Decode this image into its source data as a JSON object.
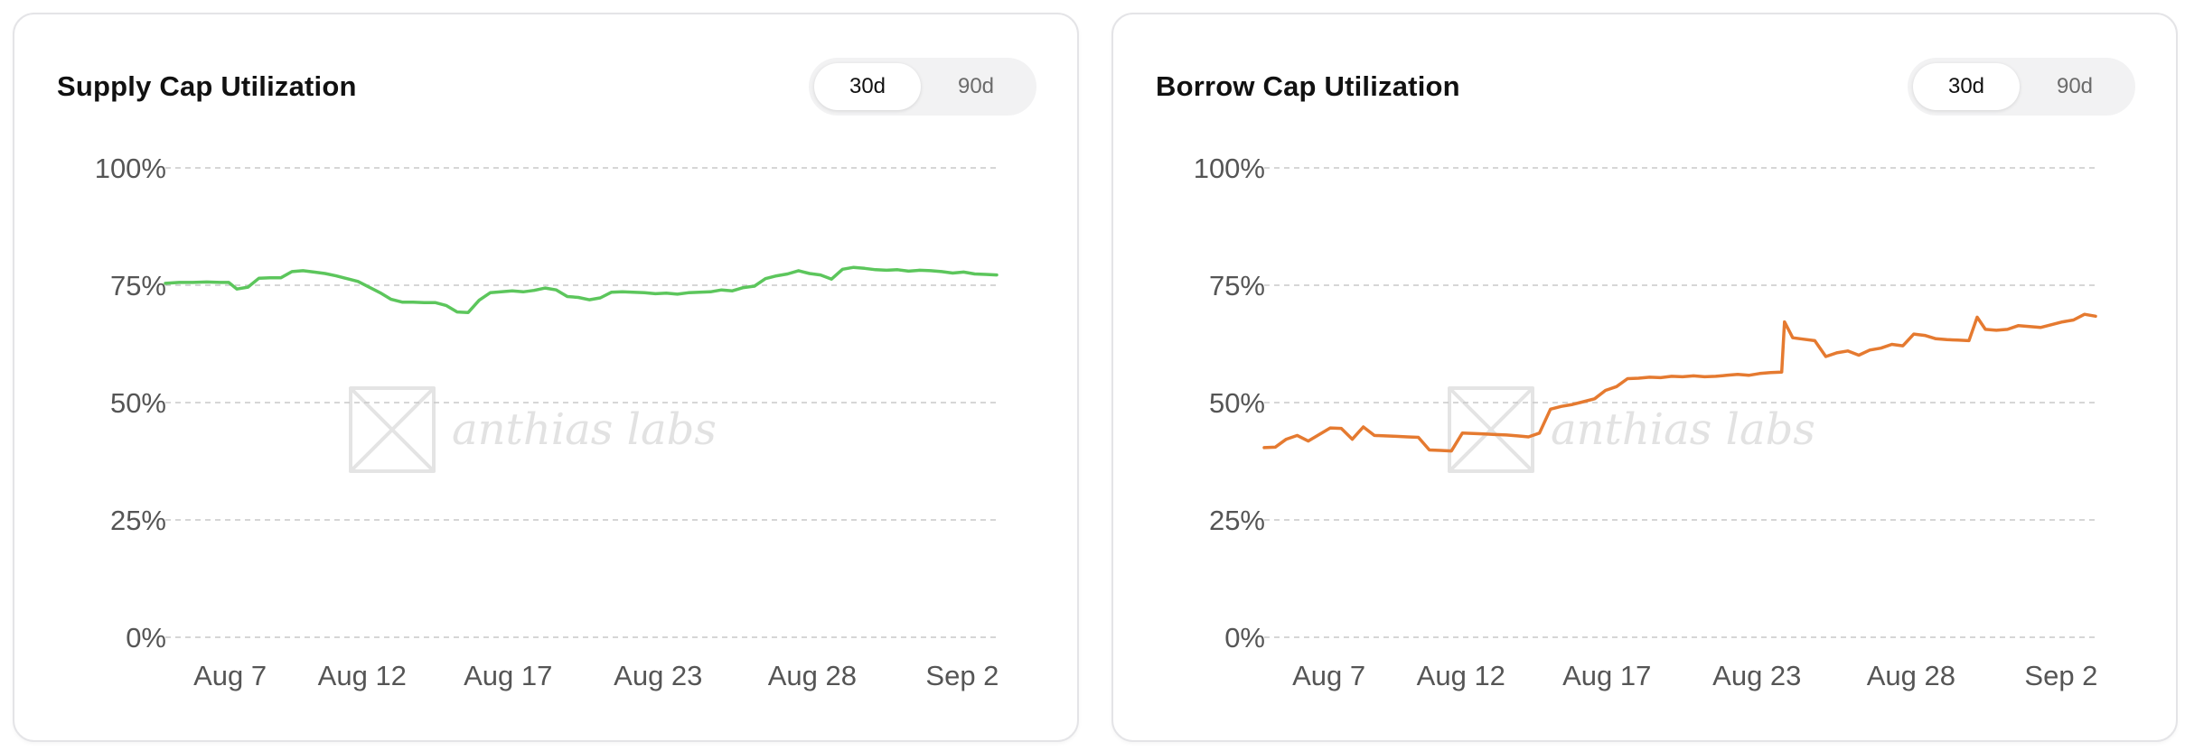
{
  "charts": [
    {
      "id": "supply",
      "title": "Supply Cap Utilization",
      "range_options": [
        {
          "label": "30d",
          "active": true
        },
        {
          "label": "90d",
          "active": false
        }
      ],
      "watermark": "anthias labs",
      "colors": {
        "line": "#5cc65c",
        "grid": "#c8c8c8",
        "text": "#555555"
      }
    },
    {
      "id": "borrow",
      "title": "Borrow Cap Utilization",
      "range_options": [
        {
          "label": "30d",
          "active": true
        },
        {
          "label": "90d",
          "active": false
        }
      ],
      "watermark": "anthias labs",
      "colors": {
        "line": "#e57a30",
        "grid": "#c8c8c8",
        "text": "#555555"
      }
    }
  ],
  "chart_data": [
    {
      "type": "line",
      "title": "Supply Cap Utilization",
      "xlabel": "",
      "ylabel": "",
      "x_ticks": [
        "Aug 7",
        "Aug 12",
        "Aug 17",
        "Aug 23",
        "Aug 28",
        "Sep 2"
      ],
      "y_ticks": [
        "0%",
        "25%",
        "50%",
        "75%",
        "100%"
      ],
      "ylim": [
        0,
        100
      ],
      "xlim": [
        0,
        30.2
      ],
      "grid": true,
      "series": [
        {
          "x": [
            0,
            0.5,
            1,
            1.5,
            2,
            2.3,
            2.6,
            3,
            3.4,
            3.8,
            4.2,
            4.6,
            5,
            5.4,
            5.8,
            6.2,
            6.6,
            7,
            7.4,
            7.8,
            8.2,
            8.6,
            9,
            9.4,
            9.8,
            10.2,
            10.6,
            11,
            11.4,
            11.8,
            12.2,
            12.6,
            13,
            13.4,
            13.8,
            14.2,
            14.6,
            15,
            15.4,
            15.8,
            16.2,
            16.6,
            17,
            17.4,
            17.8,
            18.2,
            18.6,
            19,
            19.4,
            19.8,
            20.2,
            20.6,
            21,
            21.4,
            21.8,
            22.2,
            22.6,
            23,
            23.4,
            23.8,
            24.2,
            24.6,
            25,
            25.4,
            25.8,
            26.2,
            26.6,
            27,
            27.4,
            27.8,
            28.2,
            28.6,
            29,
            29.4,
            29.8,
            30.2
          ],
          "values": [
            75.4,
            75.6,
            75.6,
            75.7,
            75.6,
            75.6,
            74.2,
            74.6,
            76.5,
            76.6,
            76.6,
            77.9,
            78.1,
            77.8,
            77.5,
            77.0,
            76.4,
            75.8,
            74.6,
            73.4,
            72.0,
            71.4,
            71.4,
            71.3,
            71.3,
            70.7,
            69.3,
            69.2,
            71.8,
            73.4,
            73.6,
            73.8,
            73.6,
            73.9,
            74.4,
            74.0,
            72.6,
            72.4,
            71.9,
            72.3,
            73.5,
            73.6,
            73.5,
            73.4,
            73.2,
            73.3,
            73.1,
            73.4,
            73.5,
            73.6,
            74.0,
            73.8,
            74.5,
            74.8,
            76.4,
            77.0,
            77.4,
            78.1,
            77.5,
            77.2,
            76.3,
            78.4,
            78.8,
            78.6,
            78.3,
            78.2,
            78.3,
            78.0,
            78.2,
            78.1,
            77.9,
            77.6,
            77.8,
            77.4,
            77.3,
            77.2
          ]
        }
      ]
    },
    {
      "type": "line",
      "title": "Borrow Cap Utilization",
      "xlabel": "",
      "ylabel": "",
      "x_ticks": [
        "Aug 7",
        "Aug 12",
        "Aug 17",
        "Aug 23",
        "Aug 28",
        "Sep 2"
      ],
      "y_ticks": [
        "0%",
        "25%",
        "50%",
        "75%",
        "100%"
      ],
      "ylim": [
        0,
        100
      ],
      "xlim": [
        0,
        30.2
      ],
      "grid": true,
      "series": [
        {
          "x": [
            0,
            0.4,
            0.8,
            1.2,
            1.6,
            2.0,
            2.4,
            2.8,
            3.2,
            3.6,
            4.0,
            4.4,
            4.8,
            5.2,
            5.6,
            6.0,
            6.4,
            6.8,
            7.2,
            7.6,
            8.0,
            8.4,
            8.8,
            9.2,
            9.6,
            10.0,
            10.4,
            10.8,
            11.2,
            11.6,
            12.0,
            12.4,
            12.8,
            13.2,
            13.6,
            14.0,
            14.4,
            14.8,
            15.2,
            15.6,
            16.0,
            16.4,
            16.8,
            17.2,
            17.6,
            18.0,
            18.4,
            18.8,
            18.9,
            19.2,
            19.6,
            20.0,
            20.4,
            20.8,
            21.2,
            21.6,
            22.0,
            22.4,
            22.8,
            23.2,
            23.6,
            24.0,
            24.4,
            24.8,
            25.2,
            25.6,
            25.9,
            26.2,
            26.6,
            27.0,
            27.4,
            27.8,
            28.2,
            28.6,
            29.0,
            29.4,
            29.8,
            30.2
          ],
          "values": [
            40.4,
            40.5,
            42.2,
            43.0,
            41.8,
            43.2,
            44.6,
            44.5,
            42.2,
            44.8,
            43.0,
            42.9,
            42.8,
            42.7,
            42.6,
            39.9,
            39.8,
            39.7,
            43.5,
            43.4,
            43.3,
            43.2,
            43.1,
            42.9,
            42.7,
            43.5,
            48.6,
            49.2,
            49.6,
            50.2,
            50.8,
            52.6,
            53.4,
            55.1,
            55.2,
            55.4,
            55.3,
            55.6,
            55.5,
            55.7,
            55.5,
            55.6,
            55.8,
            56.0,
            55.8,
            56.2,
            56.4,
            56.5,
            67.2,
            63.8,
            63.5,
            63.2,
            59.8,
            60.6,
            61.0,
            60.1,
            61.2,
            61.6,
            62.4,
            62.1,
            64.6,
            64.3,
            63.6,
            63.4,
            63.3,
            63.2,
            68.2,
            65.6,
            65.4,
            65.6,
            66.4,
            66.2,
            66.0,
            66.6,
            67.2,
            67.6,
            68.8,
            68.4
          ]
        }
      ]
    }
  ]
}
